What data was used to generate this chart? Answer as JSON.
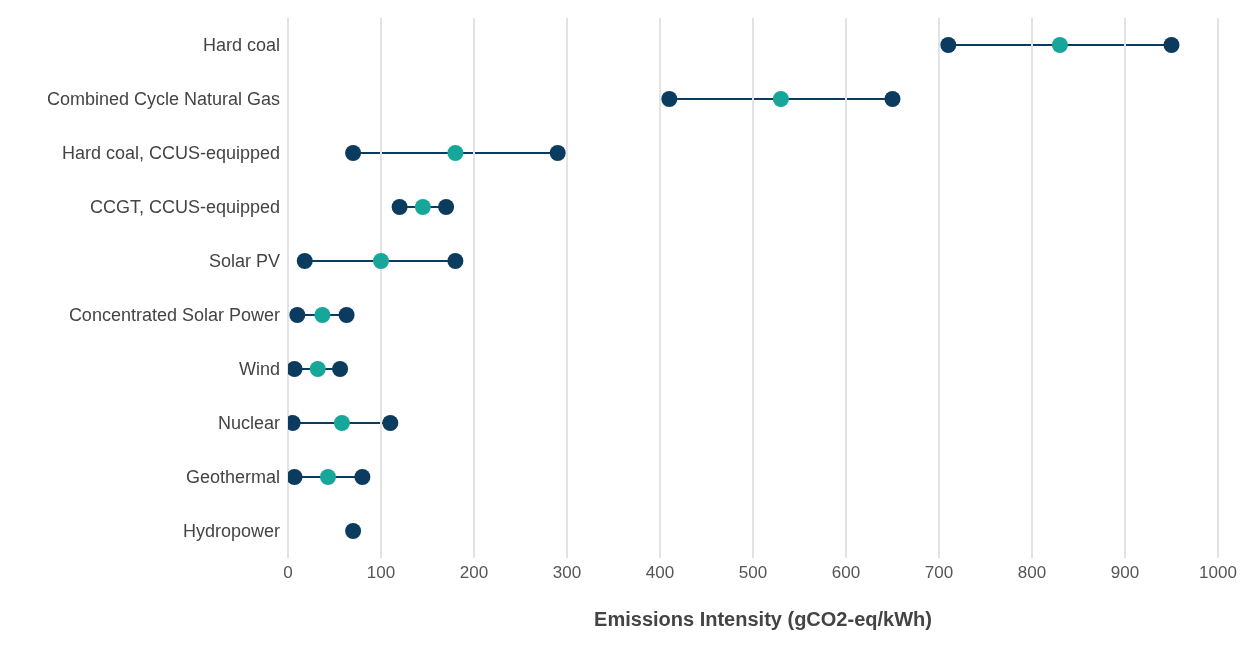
{
  "chart_data": {
    "type": "scatter",
    "orientation": "horizontal",
    "xlabel": "Emissions Intensity (gCO2-eq/kWh)",
    "categories": [
      "Hard coal",
      "Combined Cycle Natural Gas",
      "Hard coal, CCUS-equipped",
      "CCGT, CCUS-equipped",
      "Solar PV",
      "Concentrated Solar Power",
      "Wind",
      "Nuclear",
      "Geothermal",
      "Hydropower"
    ],
    "xlim": [
      0,
      1000
    ],
    "xticks": [
      0,
      100,
      200,
      300,
      400,
      500,
      600,
      700,
      800,
      900,
      1000
    ],
    "grid": "x",
    "marker": "circle",
    "series": [
      {
        "color": "#0b3b5e",
        "values": [
          710,
          410,
          70,
          120,
          18,
          10,
          7,
          5,
          7,
          70
        ]
      },
      {
        "color": "#17a69a",
        "values": [
          830,
          530,
          180,
          145,
          100,
          37,
          32,
          58,
          43,
          null
        ]
      },
      {
        "color": "#0b3b5e",
        "values": [
          950,
          650,
          290,
          170,
          180,
          63,
          56,
          110,
          80,
          null
        ]
      }
    ]
  }
}
